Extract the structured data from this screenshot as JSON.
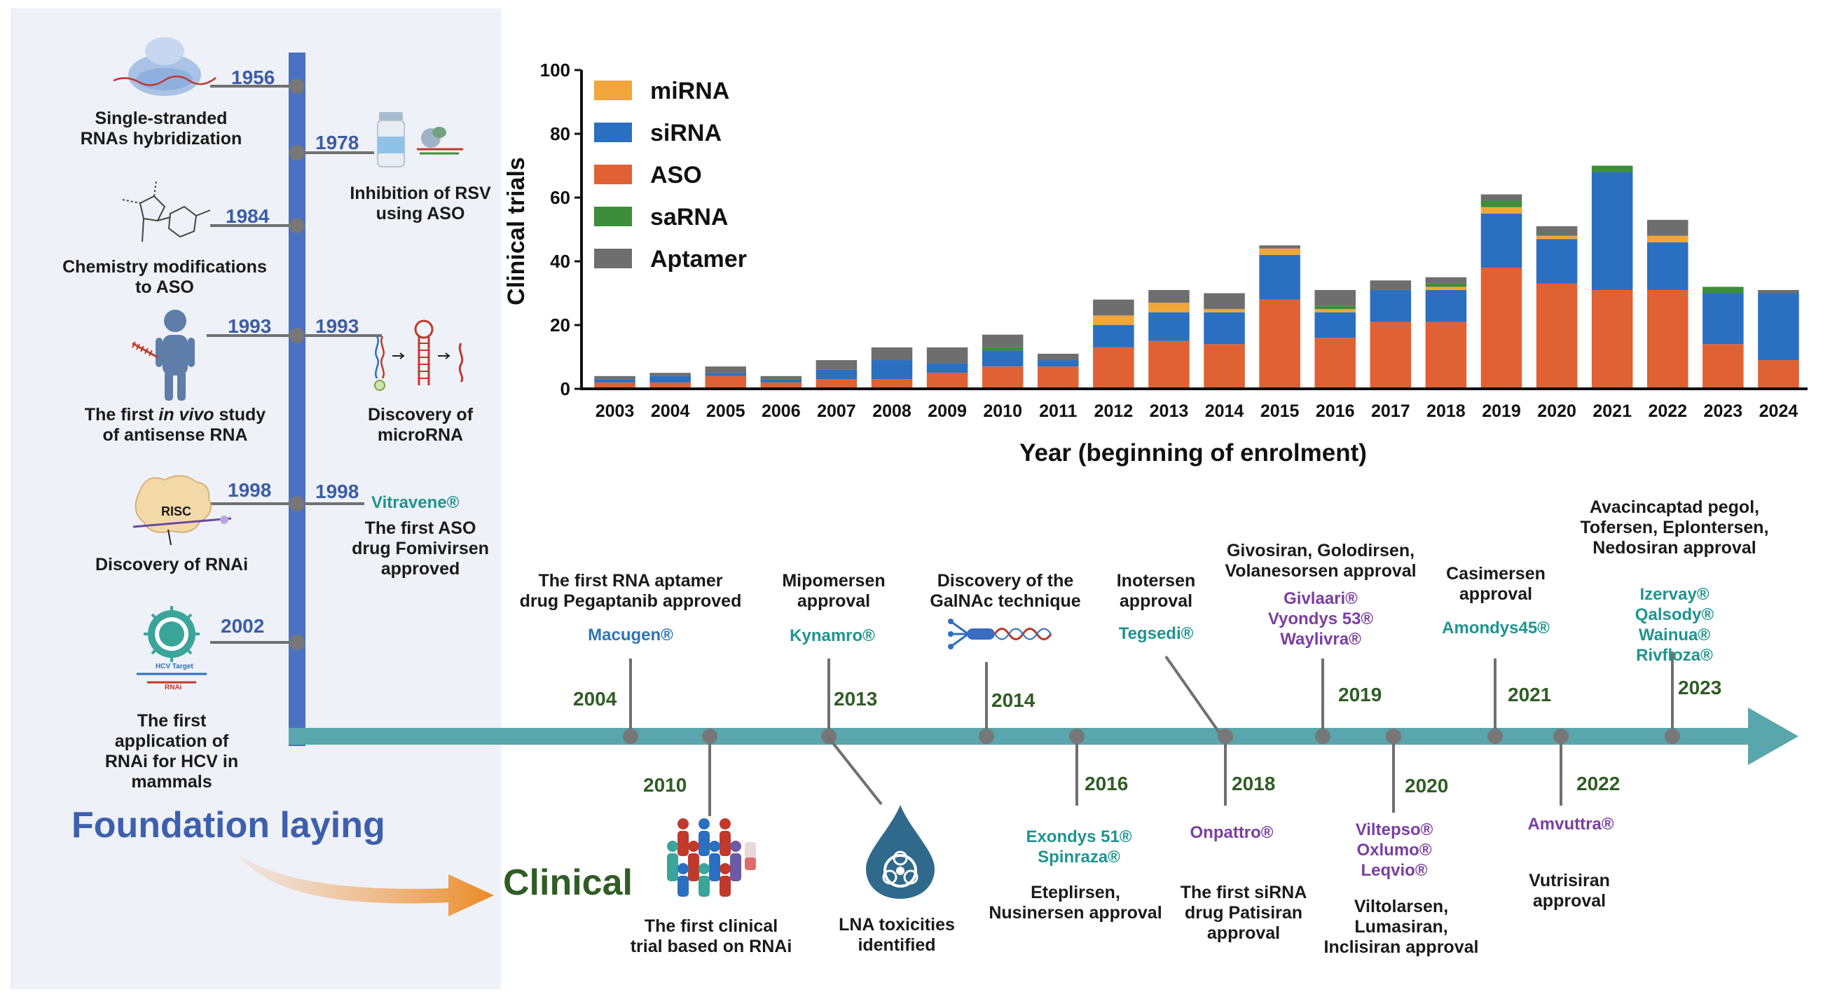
{
  "colors": {
    "mirna": "#f0a63a",
    "sirna": "#2b6fc1",
    "aso": "#e06133",
    "sarna": "#3c8e3a",
    "aptamer": "#6e6e6e",
    "timeline_axis": "#5aa6ad",
    "left_axis": "#4a72c2",
    "foundation_text": "#3d5fae",
    "clinical_text": "#2f5d25"
  },
  "icons": [
    "ribosome-icon",
    "vial-icon",
    "chemical-structure-icon",
    "person-icon",
    "microrna-hairpin-icon",
    "risc-complex-icon",
    "virus-icon",
    "people-group-icon",
    "biohazard-drop-icon",
    "galnac-conjugate-icon"
  ],
  "foundation": {
    "title": "Foundation laying",
    "events": [
      {
        "year": "1956",
        "label": "Single-stranded\nRNAs hybridization"
      },
      {
        "year": "1978",
        "label": "Inhibition of RSV\nusing ASO"
      },
      {
        "year": "1984",
        "label": "Chemistry modifications\nto ASO"
      },
      {
        "year": "1993",
        "label_prefix": "The first ",
        "label_italic": "in vivo",
        "label_suffix": " study",
        "label_line2": "of  antisense RNA"
      },
      {
        "year": "1993",
        "label": "Discovery of\nmicroRNA"
      },
      {
        "year": "1998",
        "label": "Discovery of RNAi"
      },
      {
        "year": "1998",
        "drug": "Vitravene®",
        "label": "The first ASO\ndrug Fomivirsen\napproved"
      },
      {
        "year": "2002",
        "label": "The first\napplication of\nRNAi for HCV in\nmammals"
      }
    ],
    "risc_label": "RISC",
    "hcv_target_label": "HCV Target",
    "rnai_label": "RNAi"
  },
  "clinical": {
    "title": "Clinical",
    "events": [
      {
        "year": "2004",
        "label": "The first RNA aptamer\ndrug Pegaptanib approved",
        "drug": "Macugen®"
      },
      {
        "year": "2010",
        "label": "The first clinical\ntrial based on RNAi"
      },
      {
        "year": "2013",
        "label": "Mipomersen\napproval",
        "drug": "Kynamro®"
      },
      {
        "year": "",
        "label": "LNA toxicities\nidentified"
      },
      {
        "year": "2014",
        "label": "Discovery of the\nGalNAc technique"
      },
      {
        "year": "2016",
        "drug": "Exondys 51®\nSpinraza®",
        "label": "Eteplirsen,\nNusinersen approval"
      },
      {
        "year": "",
        "label": "Inotersen\napproval",
        "drug": "Tegsedi®"
      },
      {
        "year": "2018",
        "drug": "Onpattro®",
        "label": "The first siRNA\ndrug Patisiran\napproval"
      },
      {
        "year": "2019",
        "label": "Givosiran, Golodirsen,\nVolanesorsen approval",
        "drug": "Givlaari®\nVyondys 53®\nWaylivra®"
      },
      {
        "year": "2020",
        "drug": "Viltepso®\nOxlumo®\nLeqvio®",
        "label": "Viltolarsen,\nLumasiran,\nInclisiran approval"
      },
      {
        "year": "2021",
        "label": "Casimersen\napproval",
        "drug": "Amondys45®"
      },
      {
        "year": "2022",
        "drug": "Amvuttra®",
        "label": "Vutrisiran\napproval"
      },
      {
        "year": "2023",
        "label": "Avacincaptad pegol,\nTofersen, Eplontersen,\nNedosiran approval",
        "drug": "Izervay®\nQalsody®\nWainua®\nRivfloza®"
      }
    ]
  },
  "chart_data": {
    "type": "bar",
    "stacked": true,
    "xlabel": "Year (beginning of enrolment)",
    "ylabel": "Clinical trials",
    "ylim": [
      0,
      100
    ],
    "yticks": [
      0,
      20,
      40,
      60,
      80,
      100
    ],
    "legend_position": "top-left",
    "grid": false,
    "categories": [
      "2003",
      "2004",
      "2005",
      "2006",
      "2007",
      "2008",
      "2009",
      "2010",
      "2011",
      "2012",
      "2013",
      "2014",
      "2015",
      "2016",
      "2017",
      "2018",
      "2019",
      "2020",
      "2021",
      "2022",
      "2023",
      "2024"
    ],
    "series": [
      {
        "name": "ASO",
        "color": "#e06133",
        "values": [
          2,
          2,
          4,
          2,
          3,
          3,
          5,
          7,
          7,
          13,
          15,
          14,
          28,
          16,
          21,
          21,
          38,
          33,
          31,
          31,
          14,
          9
        ]
      },
      {
        "name": "siRNA",
        "color": "#2b6fc1",
        "values": [
          1,
          2,
          1,
          1,
          3,
          6,
          3,
          5,
          2,
          7,
          9,
          10,
          14,
          8,
          10,
          10,
          17,
          14,
          37,
          15,
          16,
          21
        ]
      },
      {
        "name": "miRNA",
        "color": "#f0a63a",
        "values": [
          0,
          0,
          0,
          0,
          0,
          0,
          0,
          0,
          0,
          3,
          3,
          1,
          2,
          1,
          0,
          1,
          2,
          1,
          0,
          2,
          0,
          0
        ]
      },
      {
        "name": "saRNA",
        "color": "#3c8e3a",
        "values": [
          0,
          0,
          0,
          0,
          0,
          0,
          0,
          1,
          0,
          0,
          0,
          0,
          0,
          1,
          0,
          1,
          2,
          0,
          2,
          0,
          2,
          0
        ]
      },
      {
        "name": "Aptamer",
        "color": "#6e6e6e",
        "values": [
          1,
          1,
          2,
          1,
          3,
          4,
          5,
          4,
          2,
          5,
          4,
          5,
          1,
          5,
          3,
          2,
          2,
          3,
          0,
          5,
          0,
          1
        ]
      }
    ],
    "legend_order": [
      "miRNA",
      "siRNA",
      "ASO",
      "saRNA",
      "Aptamer"
    ]
  }
}
